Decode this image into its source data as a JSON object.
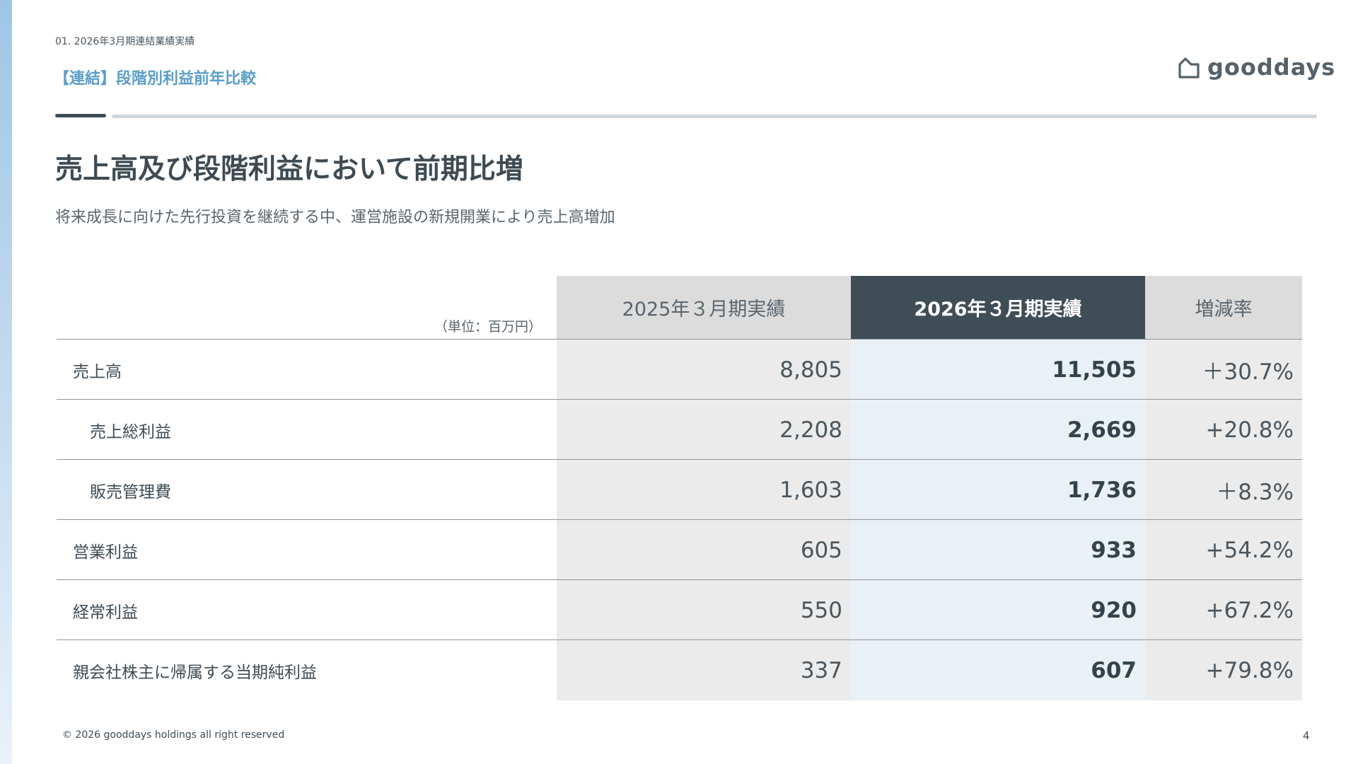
{
  "header": {
    "section_label": "01. 2026年3月期連結業績実績",
    "slide_title": "【連結】段階別利益前年比較",
    "logo_text": "gooddays"
  },
  "main": {
    "headline": "売上高及び段階利益において前期比増",
    "subheadline": "将来成長に向けた先行投資を継続する中、運営施設の新規開業により売上高増加"
  },
  "table": {
    "unit_note": "（単位：百万円）",
    "columns": [
      "2025年３月期実績",
      "2026年３月期実績",
      "増減率"
    ],
    "rows": [
      {
        "label": "売上高",
        "fy2025": "8,805",
        "fy2026": "11,505",
        "rate": "＋30.7%"
      },
      {
        "label": "売上総利益",
        "fy2025": "2,208",
        "fy2026": "2,669",
        "rate": "+20.8%"
      },
      {
        "label": "販売管理費",
        "fy2025": "1,603",
        "fy2026": "1,736",
        "rate": "＋8.3%"
      },
      {
        "label": "営業利益",
        "fy2025": "605",
        "fy2026": "933",
        "rate": "+54.2%"
      },
      {
        "label": "経常利益",
        "fy2025": "550",
        "fy2026": "920",
        "rate": "+67.2%"
      },
      {
        "label": "親会社株主に帰属する当期純利益",
        "fy2025": "337",
        "fy2026": "607",
        "rate": "+79.8%"
      }
    ]
  },
  "footer": {
    "copyright": "© 2026 gooddays holdings all right reserved",
    "page_number": "4"
  },
  "colors": {
    "accent_blue": "#5a9ec8",
    "highlight_header": "#3f4d57",
    "highlight_column": "#e9f1f7",
    "neutral_column": "#ebebeb"
  }
}
